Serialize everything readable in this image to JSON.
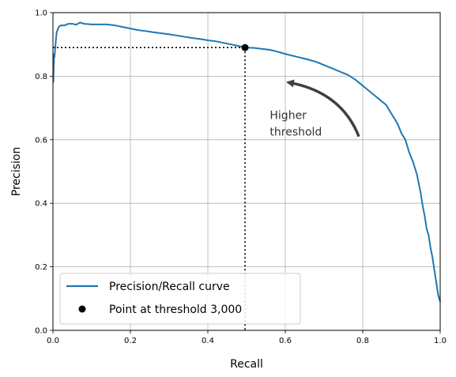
{
  "chart_data": {
    "type": "line",
    "title": "",
    "xlabel": "Recall",
    "ylabel": "Precision",
    "xlim": [
      0.0,
      1.0
    ],
    "ylim": [
      0.0,
      1.0
    ],
    "xticks": [
      "0.0",
      "0.2",
      "0.4",
      "0.6",
      "0.8",
      "1.0"
    ],
    "yticks": [
      "0.0",
      "0.2",
      "0.4",
      "0.6",
      "0.8",
      "1.0"
    ],
    "grid": true,
    "legend_position": "bottom-left",
    "colors": {
      "curve": "#1f77b4",
      "point": "#000000",
      "annotation": "#404040",
      "grid": "#b0b0b0"
    },
    "series": [
      {
        "name": "Precision/Recall curve",
        "x": [
          1.0,
          0.999,
          0.995,
          0.99,
          0.985,
          0.98,
          0.975,
          0.97,
          0.965,
          0.96,
          0.955,
          0.95,
          0.945,
          0.94,
          0.93,
          0.92,
          0.91,
          0.9,
          0.89,
          0.88,
          0.87,
          0.86,
          0.85,
          0.84,
          0.83,
          0.82,
          0.81,
          0.8,
          0.78,
          0.76,
          0.74,
          0.72,
          0.7,
          0.68,
          0.66,
          0.64,
          0.62,
          0.6,
          0.58,
          0.56,
          0.54,
          0.52,
          0.5,
          0.48,
          0.46,
          0.44,
          0.42,
          0.4,
          0.38,
          0.36,
          0.34,
          0.32,
          0.3,
          0.28,
          0.26,
          0.24,
          0.22,
          0.2,
          0.18,
          0.16,
          0.14,
          0.12,
          0.1,
          0.08,
          0.07,
          0.06,
          0.05,
          0.04,
          0.03,
          0.02,
          0.015,
          0.01,
          0.008,
          0.006,
          0.004,
          0.003,
          0.002,
          0.001
        ],
        "y": [
          0.09,
          0.095,
          0.11,
          0.15,
          0.19,
          0.23,
          0.26,
          0.3,
          0.32,
          0.36,
          0.39,
          0.43,
          0.46,
          0.49,
          0.53,
          0.56,
          0.6,
          0.62,
          0.65,
          0.67,
          0.69,
          0.71,
          0.72,
          0.73,
          0.74,
          0.75,
          0.76,
          0.77,
          0.79,
          0.805,
          0.815,
          0.825,
          0.835,
          0.845,
          0.852,
          0.858,
          0.864,
          0.87,
          0.877,
          0.883,
          0.886,
          0.889,
          0.89,
          0.895,
          0.9,
          0.905,
          0.91,
          0.913,
          0.917,
          0.92,
          0.924,
          0.928,
          0.932,
          0.935,
          0.938,
          0.942,
          0.945,
          0.95,
          0.955,
          0.96,
          0.963,
          0.963,
          0.963,
          0.965,
          0.969,
          0.962,
          0.965,
          0.965,
          0.96,
          0.96,
          0.955,
          0.94,
          0.92,
          0.89,
          0.86,
          0.87,
          0.83,
          0.78
        ]
      },
      {
        "name": "Point at threshold 3,000",
        "x": [
          0.496
        ],
        "y": [
          0.89
        ]
      }
    ],
    "annotations": [
      {
        "text_lines": [
          "Higher",
          "threshold"
        ],
        "x": 0.56,
        "y": 0.67,
        "arrow_from": [
          0.79,
          0.61
        ],
        "arrow_to": [
          0.61,
          0.78
        ]
      }
    ],
    "guide_lines": {
      "x": 0.496,
      "y": 0.89,
      "style": "dotted"
    }
  }
}
